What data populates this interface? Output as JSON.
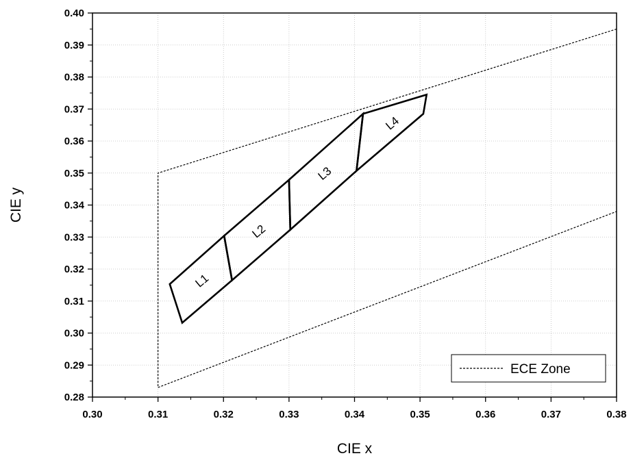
{
  "chart_data": {
    "type": "line",
    "title": "",
    "xlabel": "CIE x",
    "ylabel": "CIE y",
    "xlim": [
      0.3,
      0.38
    ],
    "ylim": [
      0.28,
      0.4
    ],
    "x_ticks": [
      "0.30",
      "0.31",
      "0.32",
      "0.33",
      "0.34",
      "0.35",
      "0.36",
      "0.37",
      "0.38"
    ],
    "y_ticks": [
      "0.28",
      "0.29",
      "0.30",
      "0.31",
      "0.32",
      "0.33",
      "0.34",
      "0.35",
      "0.36",
      "0.37",
      "0.38",
      "0.39",
      "0.40"
    ],
    "grid": true,
    "legend": {
      "placement": "bottom-right",
      "entries": [
        "ECE Zone"
      ]
    },
    "series": [
      {
        "name": "ECE Zone",
        "style": "dashed",
        "paths": [
          [
            [
              0.38,
              0.395
            ],
            [
              0.31,
              0.35
            ],
            [
              0.31,
              0.283
            ],
            [
              0.38,
              0.338
            ]
          ]
        ]
      }
    ],
    "regions": [
      {
        "label": "L1",
        "points": [
          [
            0.3118,
            0.3153
          ],
          [
            0.3201,
            0.3304
          ],
          [
            0.3213,
            0.3165
          ],
          [
            0.3137,
            0.3032
          ]
        ]
      },
      {
        "label": "L2",
        "points": [
          [
            0.3201,
            0.3304
          ],
          [
            0.33,
            0.3479
          ],
          [
            0.3302,
            0.3323
          ],
          [
            0.3213,
            0.3165
          ]
        ]
      },
      {
        "label": "L3",
        "points": [
          [
            0.33,
            0.3479
          ],
          [
            0.3413,
            0.3685
          ],
          [
            0.3403,
            0.3507
          ],
          [
            0.3302,
            0.3323
          ]
        ]
      },
      {
        "label": "L4",
        "points": [
          [
            0.3413,
            0.3685
          ],
          [
            0.351,
            0.3745
          ],
          [
            0.3505,
            0.3685
          ],
          [
            0.3403,
            0.3507
          ]
        ]
      }
    ]
  }
}
